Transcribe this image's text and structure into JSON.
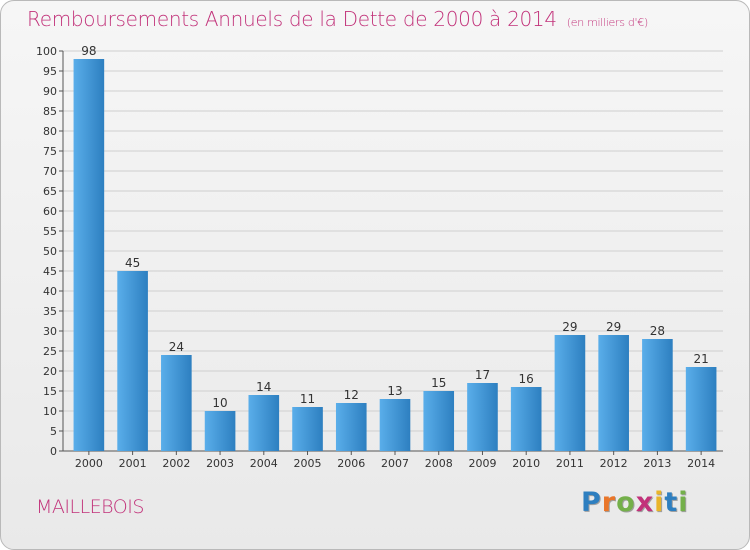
{
  "header": {
    "title": "Remboursements Annuels de la Dette de 2000 à 2014",
    "subtitle": "(en milliers d'€)"
  },
  "footer": {
    "commune": "MAILLEBOIS",
    "logo_text": "Proxiti",
    "logo_letters": [
      {
        "ch": "P",
        "color": "#2e7fc0"
      },
      {
        "ch": "r",
        "color": "#e9762a"
      },
      {
        "ch": "o",
        "color": "#74b04a"
      },
      {
        "ch": "x",
        "color": "#c2327a"
      },
      {
        "ch": "i",
        "color": "#e9b52a"
      },
      {
        "ch": "t",
        "color": "#2e7fc0"
      },
      {
        "ch": "i",
        "color": "#74b04a"
      }
    ]
  },
  "colors": {
    "bar_top": "#5aaeea",
    "bar_bottom": "#2d7fc0",
    "title": "#c2327a",
    "grid": "#cfcfcf"
  },
  "chart_data": {
    "type": "bar",
    "title": "Remboursements Annuels de la Dette de 2000 à 2014",
    "subtitle": "(en milliers d'€)",
    "categories": [
      "2000",
      "2001",
      "2002",
      "2003",
      "2004",
      "2005",
      "2006",
      "2007",
      "2008",
      "2009",
      "2010",
      "2011",
      "2012",
      "2013",
      "2014"
    ],
    "values": [
      98,
      45,
      24,
      10,
      14,
      11,
      12,
      13,
      15,
      17,
      16,
      29,
      29,
      28,
      21
    ],
    "ylim": [
      0,
      100
    ],
    "ytick_step": 5,
    "grid": true,
    "data_labels": true
  }
}
